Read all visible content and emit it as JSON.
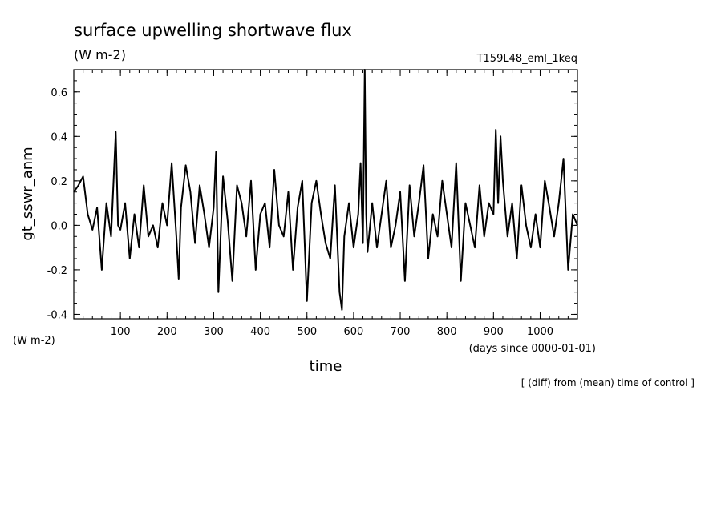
{
  "chart_data": {
    "type": "line",
    "title": "surface upwelling shortwave flux",
    "subtitle": "(W m-2)",
    "run_label": "T159L48_eml_1keq",
    "ylabel": "gt_sswr_anm",
    "yunit": "(W m-2)",
    "xlabel": "time",
    "xunit": "(days since 0000-01-01)",
    "footnote": "[ (diff) from (mean) time of control ]",
    "xlim": [
      0,
      1080
    ],
    "ylim": [
      -0.42,
      0.7
    ],
    "xticks": [
      100,
      200,
      300,
      400,
      500,
      600,
      700,
      800,
      900,
      1000
    ],
    "xtick_labels": [
      "100",
      "200",
      "300",
      "400",
      "500",
      "600",
      "700",
      "800",
      "900",
      "1000"
    ],
    "yticks": [
      -0.4,
      -0.2,
      0.0,
      0.2,
      0.4,
      0.6
    ],
    "ytick_labels": [
      "-0.4",
      "-0.2",
      "0.0",
      "0.2",
      "0.4",
      "0.6"
    ],
    "line_color": "#000000",
    "series": [
      {
        "x": [
          0,
          10,
          20,
          30,
          40,
          50,
          60,
          70,
          80,
          90,
          95,
          100,
          110,
          120,
          130,
          140,
          150,
          160,
          170,
          180,
          190,
          200,
          210,
          220,
          225,
          230,
          240,
          250,
          260,
          270,
          280,
          290,
          300,
          305,
          310,
          320,
          330,
          340,
          350,
          360,
          370,
          380,
          390,
          400,
          410,
          420,
          430,
          440,
          450,
          460,
          470,
          480,
          490,
          500,
          510,
          520,
          530,
          540,
          550,
          560,
          570,
          575,
          580,
          590,
          600,
          610,
          615,
          620,
          624,
          627,
          630,
          640,
          650,
          660,
          670,
          680,
          690,
          700,
          710,
          720,
          730,
          740,
          750,
          760,
          770,
          780,
          790,
          800,
          810,
          820,
          830,
          840,
          850,
          860,
          870,
          880,
          890,
          900,
          905,
          910,
          915,
          920,
          930,
          940,
          950,
          960,
          970,
          980,
          990,
          1000,
          1010,
          1020,
          1030,
          1040,
          1050,
          1060,
          1070,
          1080
        ],
        "y": [
          0.15,
          0.18,
          0.22,
          0.05,
          -0.02,
          0.08,
          -0.2,
          0.1,
          -0.05,
          0.42,
          0.0,
          -0.02,
          0.1,
          -0.15,
          0.05,
          -0.1,
          0.18,
          -0.05,
          0.0,
          -0.1,
          0.1,
          0.0,
          0.28,
          -0.05,
          -0.24,
          0.08,
          0.27,
          0.15,
          -0.08,
          0.18,
          0.05,
          -0.1,
          0.08,
          0.33,
          -0.3,
          0.22,
          0.02,
          -0.25,
          0.18,
          0.1,
          -0.05,
          0.2,
          -0.2,
          0.05,
          0.1,
          -0.1,
          0.25,
          0.0,
          -0.05,
          0.15,
          -0.2,
          0.08,
          0.2,
          -0.34,
          0.1,
          0.2,
          0.05,
          -0.08,
          -0.15,
          0.18,
          -0.3,
          -0.38,
          -0.05,
          0.1,
          -0.1,
          0.05,
          0.28,
          -0.08,
          0.7,
          0.05,
          -0.12,
          0.1,
          -0.1,
          0.05,
          0.2,
          -0.1,
          0.0,
          0.15,
          -0.25,
          0.18,
          -0.05,
          0.1,
          0.27,
          -0.15,
          0.05,
          -0.05,
          0.2,
          0.05,
          -0.1,
          0.28,
          -0.25,
          0.1,
          0.0,
          -0.1,
          0.18,
          -0.05,
          0.1,
          0.05,
          0.43,
          0.1,
          0.4,
          0.2,
          -0.05,
          0.1,
          -0.15,
          0.18,
          0.0,
          -0.1,
          0.05,
          -0.1,
          0.2,
          0.08,
          -0.05,
          0.1,
          0.3,
          -0.2,
          0.05,
          0.0
        ]
      }
    ]
  }
}
